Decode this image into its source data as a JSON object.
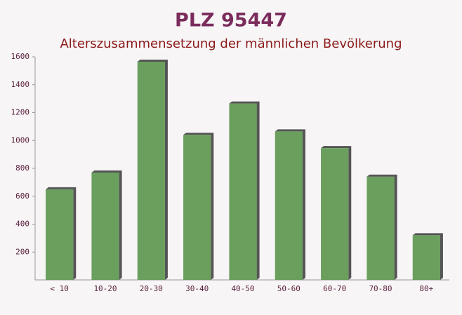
{
  "chart_data": {
    "type": "bar",
    "title": "PLZ 95447",
    "subtitle": "Alterszusammensetzung der männlichen Bevölkerung",
    "categories": [
      "< 10",
      "10-20",
      "20-30",
      "30-40",
      "40-50",
      "50-60",
      "60-70",
      "70-80",
      "80+"
    ],
    "values": [
      650,
      770,
      1565,
      1040,
      1265,
      1065,
      945,
      740,
      320
    ],
    "color": "#6a9f5d",
    "ylim": [
      0,
      1600
    ],
    "yticks": [
      200,
      400,
      600,
      800,
      1000,
      1200,
      1400,
      1600
    ]
  }
}
